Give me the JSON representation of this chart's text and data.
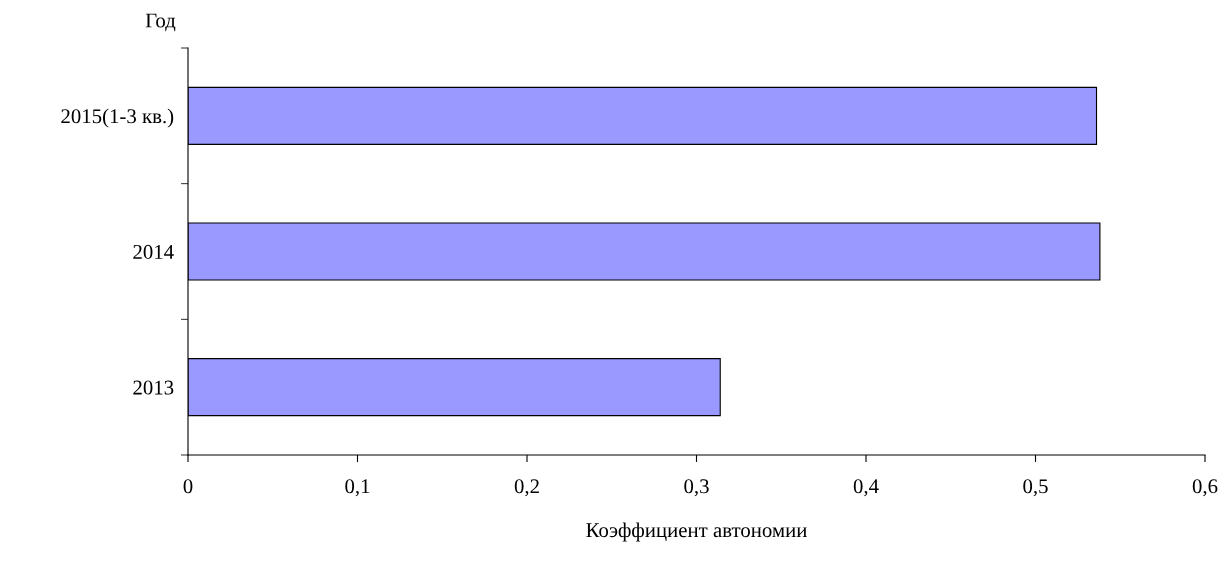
{
  "chart_data": {
    "type": "bar",
    "orientation": "horizontal",
    "xlabel": "Коэффициент автономии",
    "ylabel": "Год",
    "categories": [
      "2015(1-3 кв.)",
      "2014",
      "2013"
    ],
    "values": [
      0.536,
      0.538,
      0.314
    ],
    "color": "#9999ff",
    "xlim": [
      0,
      0.6
    ],
    "xticks": [
      {
        "value": 0,
        "label": "0"
      },
      {
        "value": 0.1,
        "label": "0,1"
      },
      {
        "value": 0.2,
        "label": "0,2"
      },
      {
        "value": 0.3,
        "label": "0,3"
      },
      {
        "value": 0.4,
        "label": "0,4"
      },
      {
        "value": 0.5,
        "label": "0,5"
      },
      {
        "value": 0.6,
        "label": "0,6"
      }
    ],
    "grid": false,
    "legend": false
  }
}
